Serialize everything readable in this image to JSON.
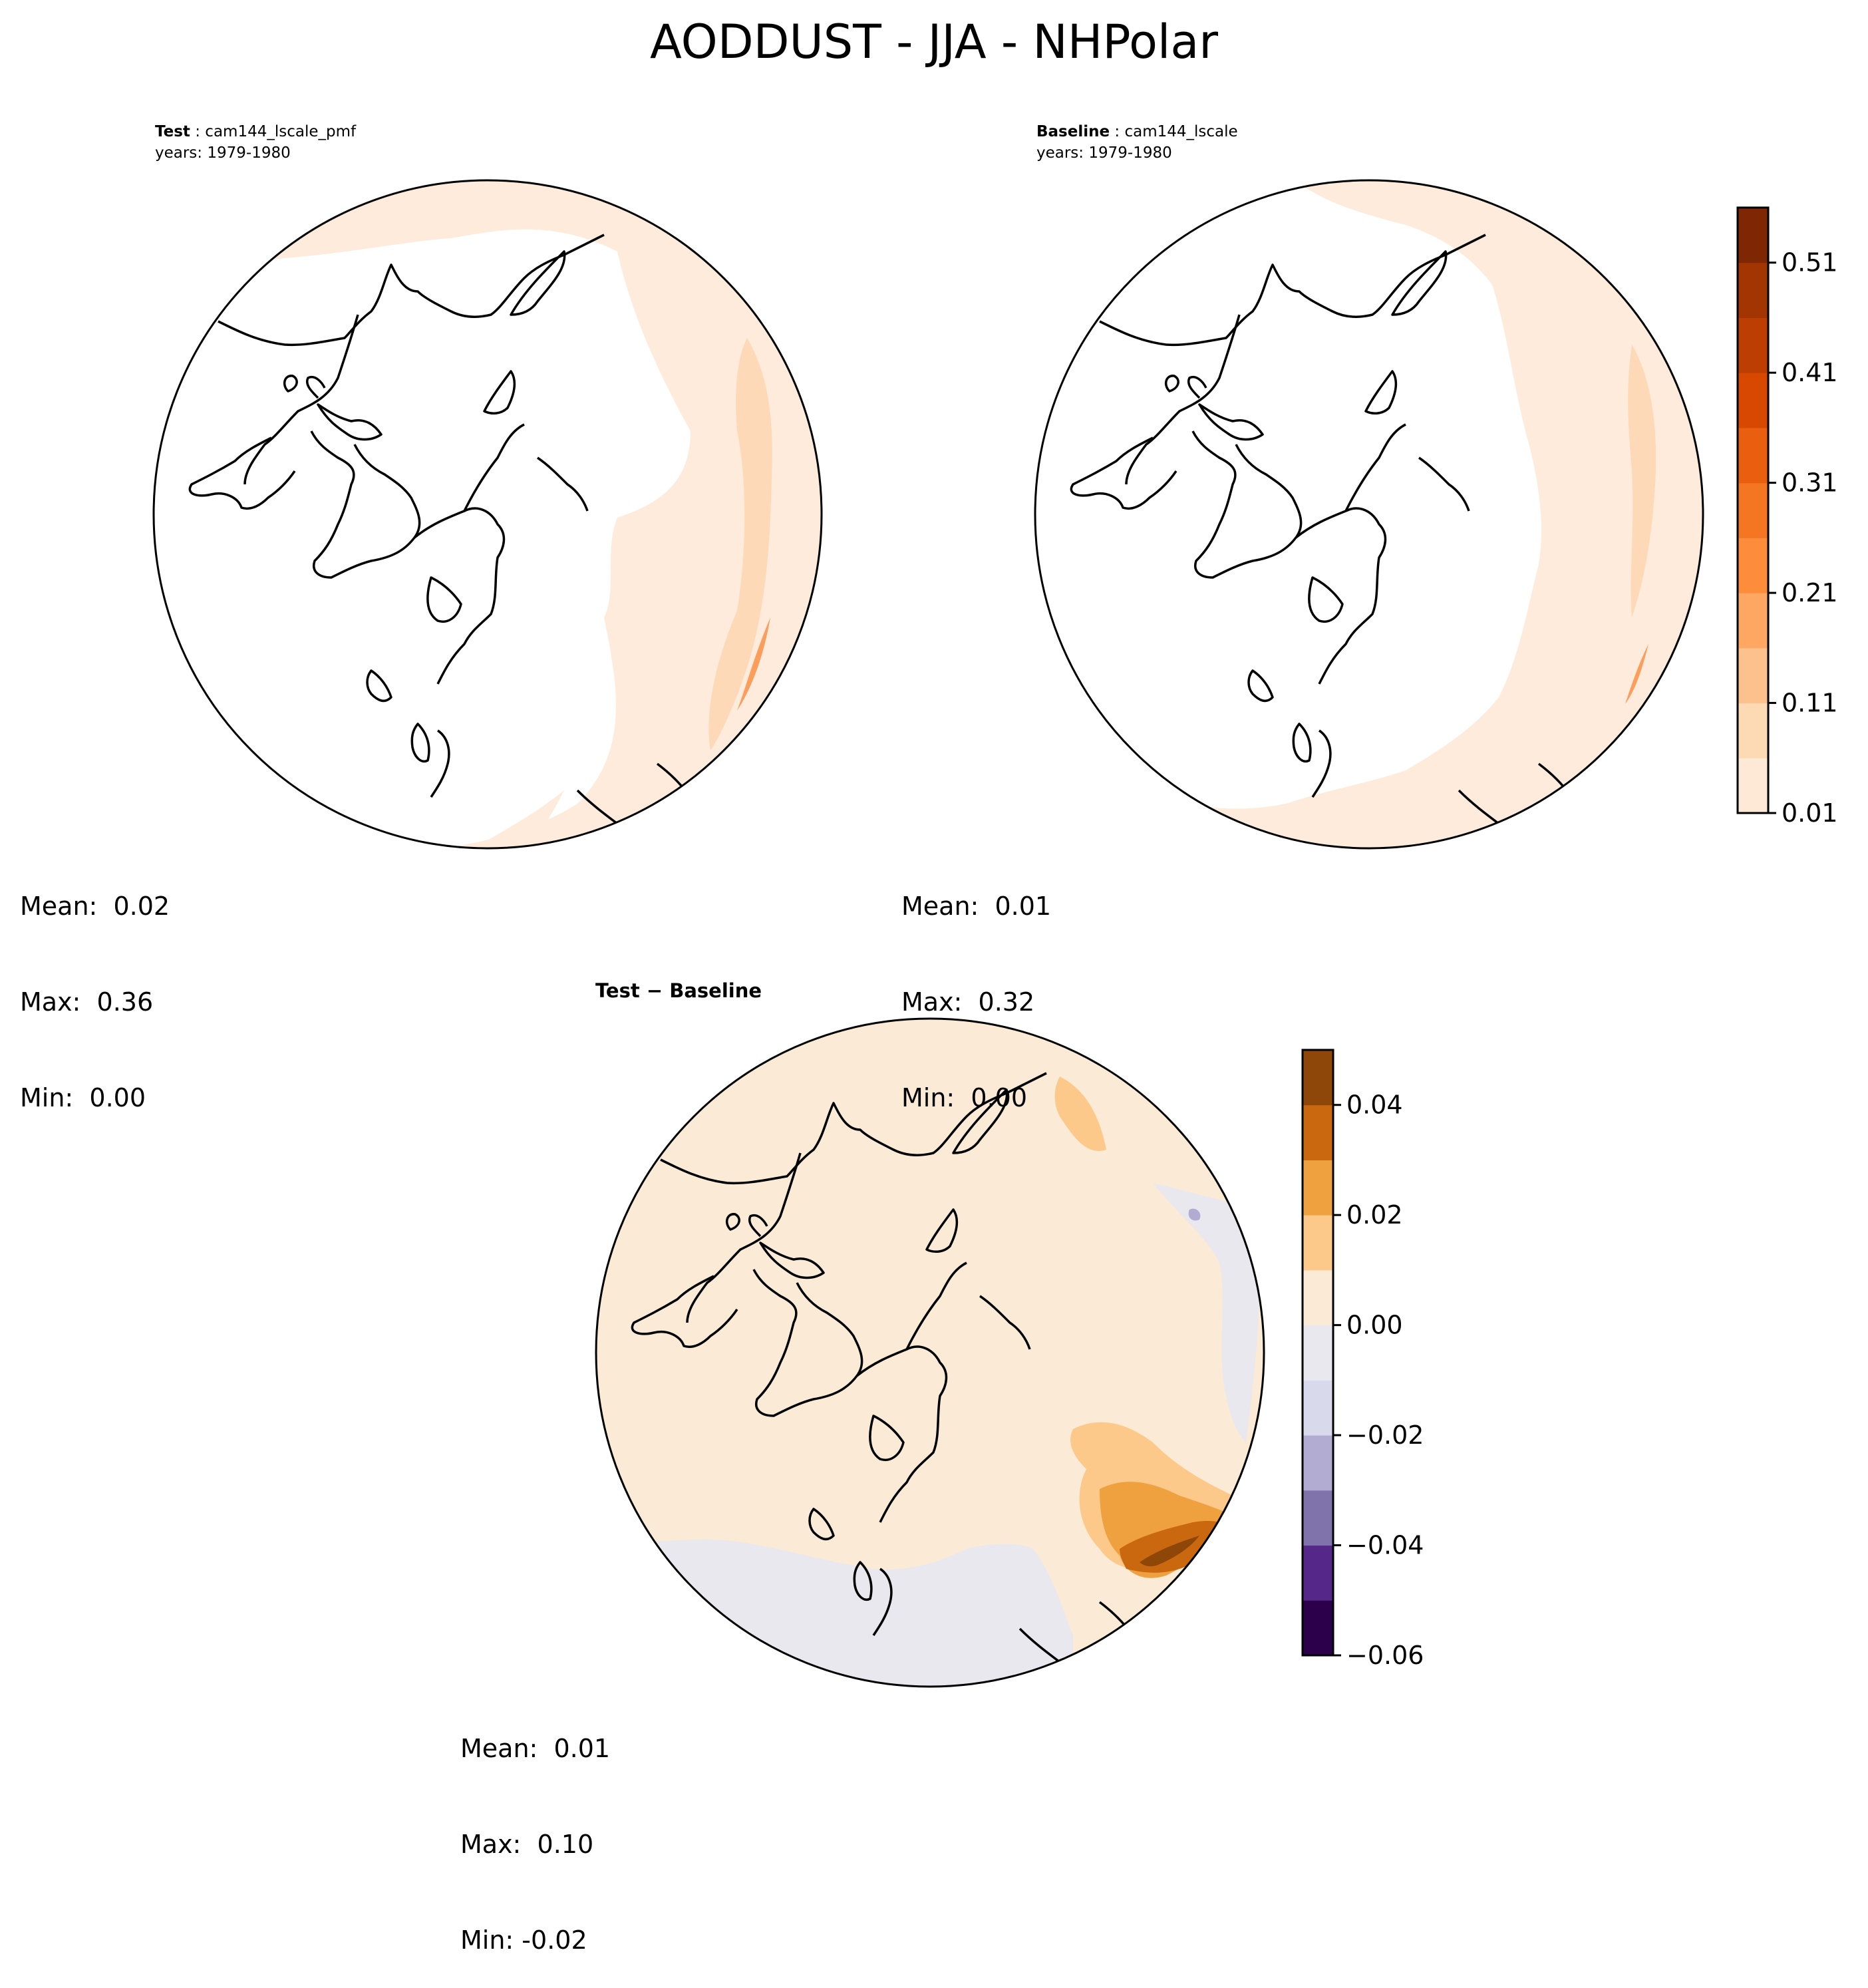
{
  "figure": {
    "title": "AODDUST - JJA - NHPolar"
  },
  "panels": {
    "test": {
      "label": "Test",
      "case": "cam144_lscale_pmf",
      "years": "years: 1979-1980",
      "stats": {
        "mean": "Mean:  0.02",
        "max": "Max:  0.36",
        "min": "Min:  0.00"
      }
    },
    "baseline": {
      "label": "Baseline",
      "case": "cam144_lscale",
      "years": "years: 1979-1980",
      "stats": {
        "mean": "Mean:  0.01",
        "max": "Max:  0.32",
        "min": "Min:  0.00"
      }
    },
    "diff": {
      "title_left": "Test",
      "title_sep": " − ",
      "title_right": "Baseline",
      "stats": {
        "mean": "Mean:  0.01",
        "max": "Max:  0.10",
        "min": "Min: -0.02"
      }
    }
  },
  "chart_data": [
    {
      "type": "heatmap",
      "projection": "north polar stereographic",
      "panel": "Test",
      "colormap": "Oranges",
      "colorbar": {
        "ticks": [
          "0.01",
          "0.11",
          "0.21",
          "0.31",
          "0.41",
          "0.51"
        ],
        "levels": [
          0.01,
          0.06,
          0.11,
          0.16,
          0.21,
          0.26,
          0.31,
          0.36,
          0.41,
          0.46,
          0.51,
          0.56
        ],
        "colors": [
          "#fee9d6",
          "#fdd9b4",
          "#fdc18e",
          "#fda762",
          "#fd8c3b",
          "#f57622",
          "#ea5f0f",
          "#d94801",
          "#bd3e02",
          "#a33503",
          "#7f2704"
        ]
      },
      "mean": 0.02,
      "max": 0.36,
      "min": 0.0
    },
    {
      "type": "heatmap",
      "projection": "north polar stereographic",
      "panel": "Baseline",
      "colormap": "Oranges",
      "colorbar": {
        "ticks": [
          "0.01",
          "0.11",
          "0.21",
          "0.31",
          "0.41",
          "0.51"
        ],
        "levels": [
          0.01,
          0.06,
          0.11,
          0.16,
          0.21,
          0.26,
          0.31,
          0.36,
          0.41,
          0.46,
          0.51,
          0.56
        ]
      },
      "mean": 0.01,
      "max": 0.32,
      "min": 0.0
    },
    {
      "type": "heatmap",
      "projection": "north polar stereographic",
      "panel": "Test - Baseline",
      "colormap": "PuOr_r",
      "colorbar": {
        "ticks": [
          "0.04",
          "0.02",
          "0.00",
          "−0.02",
          "−0.04",
          "−0.06"
        ],
        "levels": [
          -0.06,
          -0.05,
          -0.04,
          -0.03,
          -0.02,
          -0.01,
          0.0,
          0.01,
          0.02,
          0.03,
          0.04,
          0.05
        ],
        "colors": [
          "#2d004b",
          "#542788",
          "#8073ac",
          "#b2abd2",
          "#d8daeb",
          "#e8e8ee",
          "#fbebd6",
          "#fdc98a",
          "#f0a13f",
          "#c9680e",
          "#8f4709"
        ]
      },
      "mean": 0.01,
      "max": 0.1,
      "min": -0.02
    }
  ]
}
